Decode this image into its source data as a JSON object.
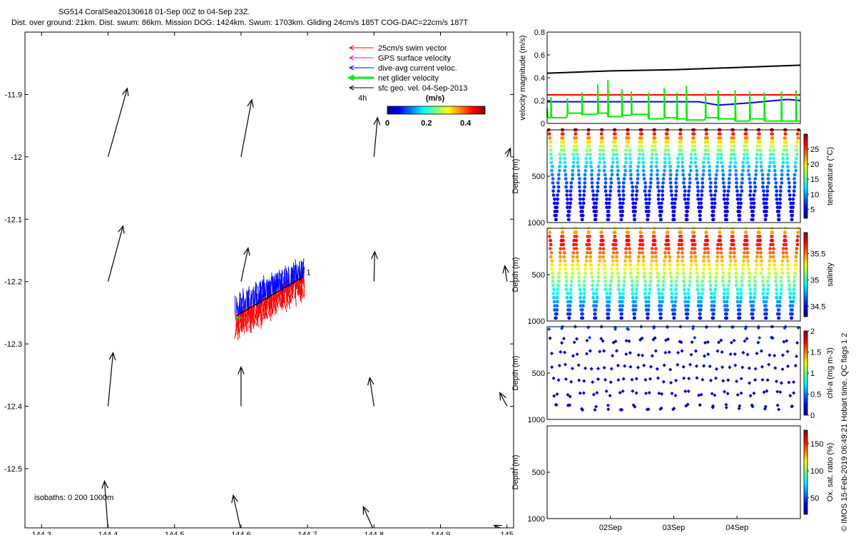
{
  "header": {
    "line1": "SG514 CoralSea20130618 01-Sep 00Z to 04-Sep 23Z.",
    "line2": "Dist. over ground: 21km. Dist. swum: 86km. Mission DOG: 1424km. Swum: 1703km. Gliding 24cm/s 185T COG-DAC=22cm/s 187T"
  },
  "credit": "© IMOS 15-Feb-2019 06:49:21 Hobart time. QC flags 1  2",
  "chart_data": [
    {
      "type": "map",
      "xlim": [
        144.275,
        145.01
      ],
      "ylim": [
        -12.595,
        -11.8
      ],
      "xticks": [
        144.3,
        144.4,
        144.5,
        144.6,
        144.7,
        144.8,
        144.9,
        145
      ],
      "xtick_labels": [
        "144.3",
        "144.4",
        "144.5",
        "144.6",
        "144.7",
        "144.8",
        "144.9",
        "145"
      ],
      "yticks": [
        -11.9,
        -12,
        -12.1,
        -12.2,
        -12.3,
        -12.4,
        -12.5
      ],
      "ytick_labels": [
        "-11.9",
        "-12",
        "-12.1",
        "-12.2",
        "-12.3",
        "-12.4",
        "-12.5"
      ],
      "legend": {
        "placement": "top-right",
        "entries": [
          {
            "label": "25cm/s swim vector",
            "color": "#ff0000"
          },
          {
            "label": "GPS surface velocity",
            "color": "#ff00ff"
          },
          {
            "label": "dive-avg current veloc.",
            "color": "#0000ff"
          },
          {
            "label": "net glider velocity",
            "color": "#00ee00"
          },
          {
            "label": "sfc geo. vel. 04-Sep-2013",
            "color": "#000000"
          }
        ],
        "scale_label": "4h"
      },
      "colorbar": {
        "label": "(m/s)",
        "ticks": [
          0,
          0.2,
          0.4
        ],
        "tick_labels": [
          "0",
          "0.2",
          "0.4"
        ],
        "range": [
          0,
          0.5
        ]
      },
      "track_label": "1",
      "isobaths_label": "isobaths: 0   200  1000m",
      "geo_arrows": [
        {
          "lon": 144.4,
          "lat": -12.0,
          "u": 0.27,
          "v": 0.96
        },
        {
          "lon": 144.6,
          "lat": -12.0,
          "u": 0.15,
          "v": 0.8
        },
        {
          "lon": 144.8,
          "lat": -12.0,
          "u": 0.05,
          "v": 0.55
        },
        {
          "lon": 145.0,
          "lat": -12.0,
          "u": 0.05,
          "v": 0.12
        },
        {
          "lon": 144.4,
          "lat": -12.2,
          "u": 0.21,
          "v": 0.78
        },
        {
          "lon": 144.6,
          "lat": -12.2,
          "u": 0.1,
          "v": 0.47
        },
        {
          "lon": 144.8,
          "lat": -12.2,
          "u": 0.01,
          "v": 0.42
        },
        {
          "lon": 145.0,
          "lat": -12.2,
          "u": -0.03,
          "v": 0.22
        },
        {
          "lon": 144.4,
          "lat": -12.4,
          "u": 0.07,
          "v": 0.75
        },
        {
          "lon": 144.6,
          "lat": -12.4,
          "u": 0.0,
          "v": 0.55
        },
        {
          "lon": 144.8,
          "lat": -12.4,
          "u": -0.06,
          "v": 0.4
        },
        {
          "lon": 145.0,
          "lat": -12.4,
          "u": -0.1,
          "v": 0.19
        },
        {
          "lon": 144.4,
          "lat": -12.6,
          "u": -0.05,
          "v": 0.7
        },
        {
          "lon": 144.6,
          "lat": -12.6,
          "u": -0.11,
          "v": 0.5
        },
        {
          "lon": 144.8,
          "lat": -12.6,
          "u": -0.15,
          "v": 0.34
        },
        {
          "lon": 145.0,
          "lat": -12.6,
          "u": -0.18,
          "v": 0.08
        }
      ],
      "track_start": {
        "lon": 144.593,
        "lat": -12.255
      },
      "track_end": {
        "lon": 144.694,
        "lat": -12.192
      }
    },
    {
      "type": "line",
      "ylabel": "velocity magnitude (m/s)",
      "xlim": [
        0,
        4
      ],
      "ylim": [
        0,
        0.8
      ],
      "yticks": [
        0,
        0.2,
        0.4,
        0.6,
        0.8
      ],
      "ytick_labels": [
        "0",
        "0.2",
        "0.4",
        "0.6",
        "0.8"
      ],
      "series": [
        {
          "color": "#000000",
          "x": [
            0,
            1,
            2,
            3,
            4
          ],
          "values": [
            0.44,
            0.46,
            0.47,
            0.49,
            0.51
          ]
        },
        {
          "color": "#ff0000",
          "x": [
            0,
            4
          ],
          "values": [
            0.25,
            0.25
          ]
        },
        {
          "color": "#0000ff",
          "x": [
            0,
            0.6,
            1.2,
            2.4,
            2.7,
            3.2,
            3.8,
            4
          ],
          "values": [
            0.19,
            0.19,
            0.19,
            0.19,
            0.16,
            0.18,
            0.21,
            0.2
          ]
        },
        {
          "color": "#00ee00",
          "type": "spikes",
          "x": [
            0.0,
            0.06,
            0.32,
            0.55,
            0.8,
            0.96,
            1.18,
            1.33,
            1.6,
            1.85,
            2.05,
            2.2,
            2.5,
            2.7,
            2.97,
            3.2,
            3.43,
            3.7,
            3.93
          ],
          "values": [
            0.14,
            0.23,
            0.22,
            0.27,
            0.34,
            0.38,
            0.3,
            0.28,
            0.27,
            0.31,
            0.27,
            0.33,
            0.27,
            0.29,
            0.29,
            0.28,
            0.27,
            0.28,
            0.29
          ],
          "floor": [
            0.05,
            0.05,
            0.09,
            0.08,
            0.09,
            0.06,
            0.07,
            0.08,
            0.04,
            0.05,
            0.04,
            0.03,
            0.05,
            0.04,
            0.02,
            0.04,
            0.02,
            0.02,
            0.02
          ]
        }
      ]
    },
    {
      "type": "scatter",
      "variable": "temperature",
      "ylabel": "Depth (m)",
      "clabel": "temperature (°C)",
      "ylim": [
        0,
        1000
      ],
      "yticks": [
        500,
        1000
      ],
      "ytick_labels": [
        "500",
        "1000"
      ],
      "crange": [
        2,
        30
      ],
      "cticks": [
        5,
        10,
        15,
        20,
        25
      ],
      "ctick_labels": [
        "5",
        "10",
        "15",
        "20",
        "25"
      ],
      "dives": 19,
      "max_depth": 990
    },
    {
      "type": "scatter",
      "variable": "salinity",
      "ylabel": "Depth (m)",
      "clabel": "salinity",
      "ylim": [
        0,
        1000
      ],
      "yticks": [
        500,
        1000
      ],
      "ytick_labels": [
        "500",
        "1000"
      ],
      "crange": [
        34.3,
        35.9
      ],
      "cticks": [
        34.5,
        35,
        35.5
      ],
      "ctick_labels": [
        "34.5",
        "35",
        "35.5"
      ],
      "dives": 19,
      "max_depth": 990
    },
    {
      "type": "scatter",
      "variable": "chlorophyll",
      "ylabel": "Depth (m)",
      "clabel": "chl-a (mg m-3)",
      "ylim": [
        0,
        1000
      ],
      "yticks": [
        500,
        1000
      ],
      "ytick_labels": [
        "500",
        "1000"
      ],
      "crange": [
        0,
        2
      ],
      "cticks": [
        0,
        0.5,
        1,
        1.5,
        2
      ],
      "ctick_labels": [
        "0",
        "0.5",
        "1",
        "1.5",
        "2"
      ],
      "dives": 19,
      "max_depth": 990
    },
    {
      "type": "scatter",
      "variable": "oxygen",
      "ylabel": "Depth (m)",
      "clabel": "Ox. sat. ratio (%)",
      "ylim": [
        0,
        1000
      ],
      "yticks": [
        500,
        1000
      ],
      "ytick_labels": [
        "500",
        "1000"
      ],
      "crange": [
        20,
        175
      ],
      "cticks": [
        50,
        100,
        150
      ],
      "ctick_labels": [
        "50",
        "100",
        "150"
      ],
      "xticks": [
        1,
        2,
        3
      ],
      "xtick_labels": [
        "02Sep",
        "03Sep",
        "04Sep"
      ],
      "xlim": [
        0,
        4
      ]
    }
  ]
}
